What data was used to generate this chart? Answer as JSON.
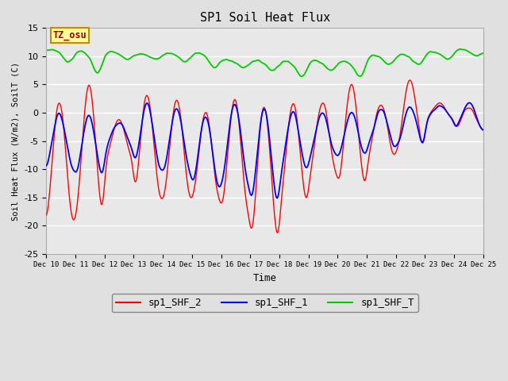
{
  "title": "SP1 Soil Heat Flux",
  "xlabel": "Time",
  "ylabel": "Soil Heat Flux (W/m2), SoilT (C)",
  "ylim": [
    -25,
    15
  ],
  "yticks": [
    -25,
    -20,
    -15,
    -10,
    -5,
    0,
    5,
    10,
    15
  ],
  "xtick_labels": [
    "Dec 10",
    "Dec 11",
    "Dec 12",
    "Dec 13",
    "Dec 14",
    "Dec 15",
    "Dec 16",
    "Dec 17",
    "Dec 18",
    "Dec 19",
    "Dec 20",
    "Dec 21",
    "Dec 22",
    "Dec 23",
    "Dec 24",
    "Dec 25"
  ],
  "color_shf2": "#ff0000",
  "color_shf1": "#0000ff",
  "color_shfT": "#00cc00",
  "legend_labels": [
    "sp1_SHF_2",
    "sp1_SHF_1",
    "sp1_SHF_T"
  ],
  "tz_label": "TZ_osu",
  "fig_bg": "#e0e0e0",
  "plot_bg": "#e8e8e8"
}
